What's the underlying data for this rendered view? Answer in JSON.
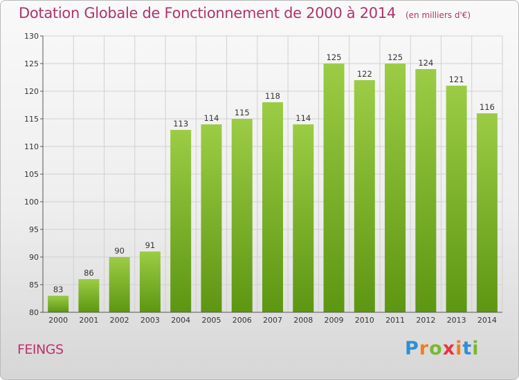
{
  "title": "Dotation Globale de Fonctionnement de 2000 à 2014",
  "unit_note": "(en milliers d'€)",
  "commune": "FEINGS",
  "logo": {
    "text": "Proxiti",
    "letter_colors": [
      "#2e8fd4",
      "#f07d20",
      "#7ab830",
      "#e8343e",
      "#f07d20",
      "#2e8fd4",
      "#7ab830"
    ]
  },
  "colors": {
    "bar_top": "#9ccc45",
    "bar_bottom": "#5d9612",
    "title": "#b0326e",
    "commune": "#c1306d",
    "grid": "#d0d0d0"
  },
  "chart_data": {
    "type": "bar",
    "title": "Dotation Globale de Fonctionnement de 2000 à 2014",
    "xlabel": "",
    "ylabel": "",
    "categories": [
      "2000",
      "2001",
      "2002",
      "2003",
      "2004",
      "2005",
      "2006",
      "2007",
      "2008",
      "2009",
      "2010",
      "2011",
      "2012",
      "2013",
      "2014"
    ],
    "values": [
      83,
      86,
      90,
      91,
      113,
      114,
      115,
      118,
      114,
      125,
      122,
      125,
      124,
      121,
      116
    ],
    "ylim": [
      80,
      130
    ],
    "yticks": [
      80,
      85,
      90,
      95,
      100,
      105,
      110,
      115,
      120,
      125,
      130
    ],
    "grid": true,
    "data_labels": true
  }
}
